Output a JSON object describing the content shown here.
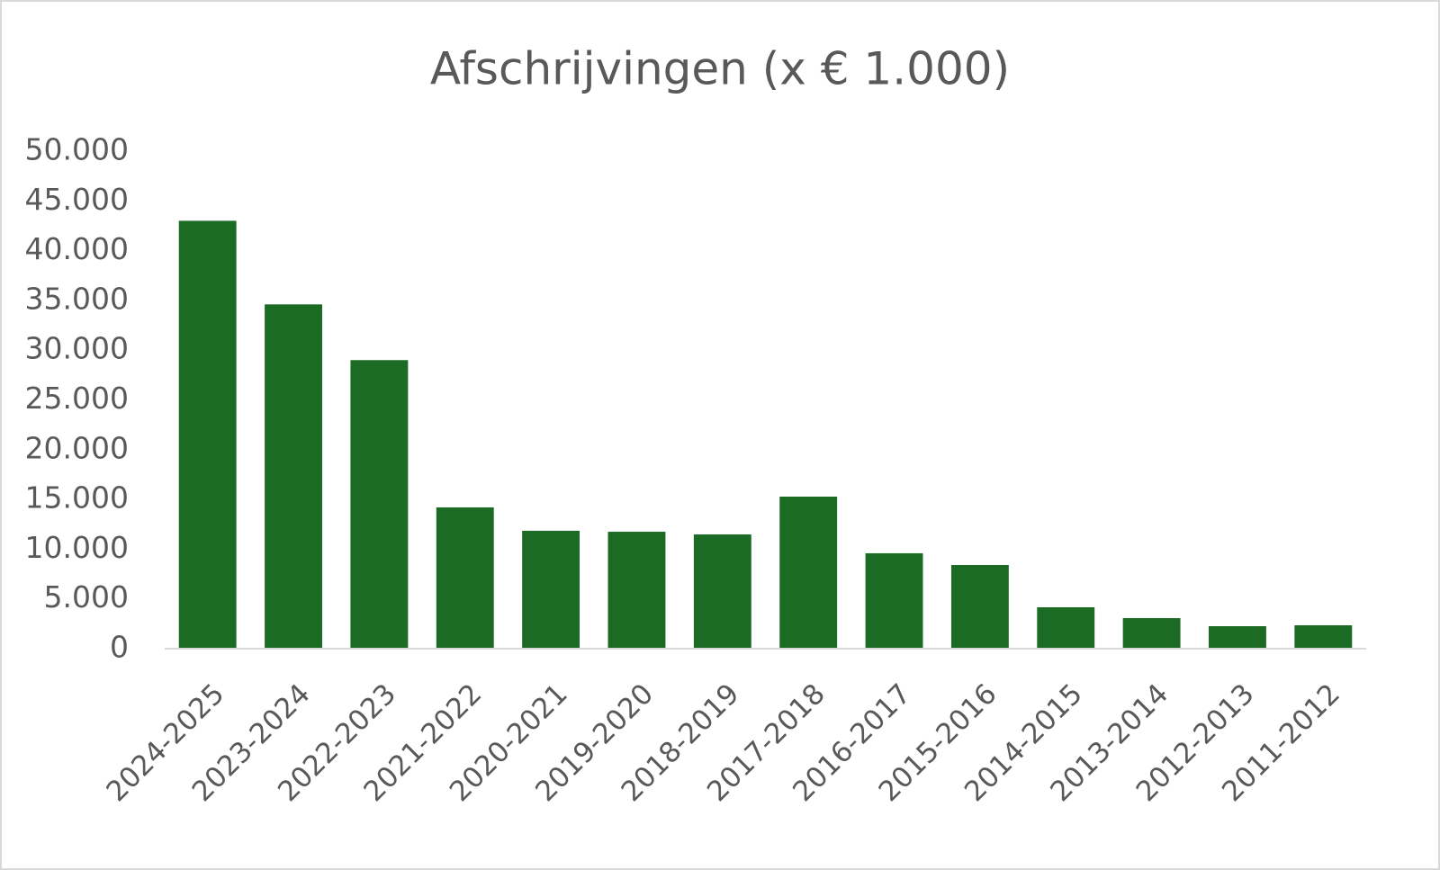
{
  "chart_data": {
    "type": "bar",
    "title": "Afschrijvingen (x € 1.000)",
    "categories": [
      "2024-2025",
      "2023-2024",
      "2022-2023",
      "2021-2022",
      "2020-2021",
      "2019-2020",
      "2018-2019",
      "2017-2018",
      "2016-2017",
      "2015-2016",
      "2014-2015",
      "2013-2014",
      "2012-2013",
      "2011-2012"
    ],
    "values": [
      43000,
      34600,
      29000,
      14200,
      11850,
      11750,
      11480,
      15280,
      9590,
      8410,
      4160,
      3070,
      2260,
      2350
    ],
    "color": "#1b6b24",
    "ylim": [
      0,
      50000
    ],
    "yticks": [
      0,
      {
        "value": 5000,
        "label": "5.000"
      },
      {
        "value": 10000,
        "label": "10.000"
      },
      {
        "value": 15000,
        "label": "15.000"
      },
      {
        "value": 20000,
        "label": "20.000"
      },
      {
        "value": 25000,
        "label": "25.000"
      },
      {
        "value": 30000,
        "label": "30.000"
      },
      {
        "value": 35000,
        "label": "35.000"
      },
      {
        "value": 40000,
        "label": "40.000"
      },
      {
        "value": 45000,
        "label": "45.000"
      },
      {
        "value": 50000,
        "label": "50.000"
      }
    ],
    "grid": false
  }
}
